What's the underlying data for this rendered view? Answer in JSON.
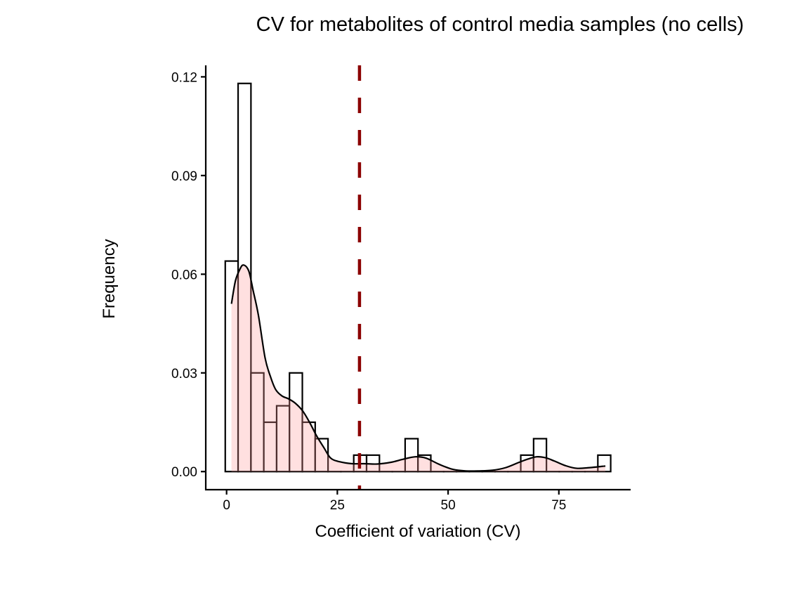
{
  "chart_data": {
    "type": "bar",
    "subtype": "histogram-with-density",
    "title": "CV for metabolites of control media samples (no cells)",
    "xlabel": "Coefficient of variation (CV)",
    "ylabel": "Frequency",
    "xlim": [
      -4.7,
      91.2
    ],
    "ylim": [
      -0.0055,
      0.1235
    ],
    "x_ticks": [
      0,
      25,
      50,
      75
    ],
    "x_tick_labels": [
      "0",
      "25",
      "50",
      "75"
    ],
    "y_ticks": [
      0,
      0.03,
      0.06,
      0.09,
      0.12
    ],
    "y_tick_labels": [
      "0.00",
      "0.03",
      "0.06",
      "0.09",
      "0.12"
    ],
    "grid": false,
    "legend": "none",
    "histogram": {
      "bin_start": -0.3,
      "bin_width": 2.9,
      "values": [
        0.064,
        0.118,
        0.03,
        0.015,
        0.02,
        0.03,
        0.015,
        0.01,
        0,
        0,
        0.005,
        0.005,
        0,
        0,
        0.01,
        0.005,
        0,
        0,
        0,
        0,
        0,
        0,
        0,
        0.005,
        0.01,
        0,
        0,
        0,
        0,
        0.005
      ],
      "fill": "#ffffff",
      "stroke": "#000000"
    },
    "density": {
      "x": [
        1.1,
        2.0,
        3.0,
        3.8,
        5.0,
        6.0,
        7.2,
        8.7,
        10.0,
        11.1,
        12.5,
        14.0,
        15.5,
        17.2,
        18.8,
        20.3,
        22.0,
        23.5,
        25.5,
        28.3,
        31.0,
        34.0,
        37.0,
        40.0,
        42.6,
        45.0,
        48.0,
        51.0,
        54.0,
        57.0,
        60.0,
        63.0,
        66.0,
        68.0,
        70.0,
        72.0,
        74.0,
        76.5,
        79.0,
        82.0,
        85.5
      ],
      "y": [
        0.051,
        0.058,
        0.0615,
        0.0628,
        0.061,
        0.055,
        0.0474,
        0.0345,
        0.0285,
        0.0249,
        0.023,
        0.0221,
        0.0208,
        0.0184,
        0.0148,
        0.0109,
        0.0072,
        0.0041,
        0.003,
        0.0024,
        0.0024,
        0.0023,
        0.0028,
        0.0038,
        0.0045,
        0.0041,
        0.0022,
        0.0007,
        0.0002,
        0.0002,
        0.0004,
        0.0012,
        0.0028,
        0.0038,
        0.0045,
        0.0042,
        0.0032,
        0.0018,
        0.001,
        0.0012,
        0.0017
      ],
      "fill": "#ffe0e0",
      "stroke": "#000000"
    },
    "vline": {
      "x": 30,
      "color": "#8b0000",
      "style": "dashed"
    }
  }
}
